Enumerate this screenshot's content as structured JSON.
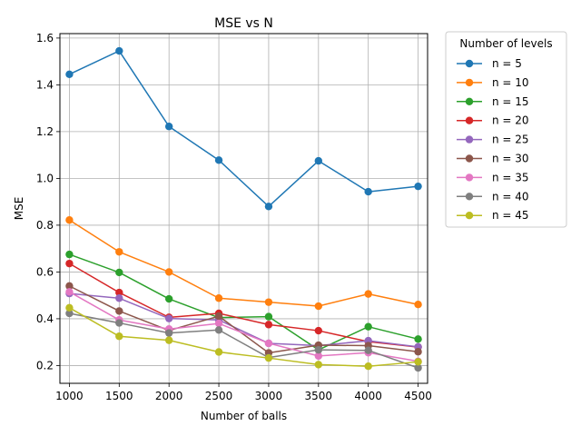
{
  "chart_data": {
    "type": "line",
    "title": "MSE vs N",
    "xlabel": "Number of balls",
    "ylabel": "MSE",
    "x": [
      1000,
      1500,
      2000,
      2500,
      3000,
      3500,
      4000,
      4500
    ],
    "xticks": [
      1000,
      1500,
      2000,
      2500,
      3000,
      3500,
      4000,
      4500
    ],
    "yticks": [
      0.2,
      0.4,
      0.6,
      0.8,
      1.0,
      1.2,
      1.4,
      1.6
    ],
    "xlim": [
      905,
      4595
    ],
    "ylim": [
      0.124,
      1.619
    ],
    "grid": true,
    "legend_title": "Number of levels",
    "legend_position": "outside-right",
    "series": [
      {
        "name": "n = 5",
        "color": "#1f77b4",
        "values": [
          1.445,
          1.545,
          1.222,
          1.078,
          0.88,
          1.075,
          0.943,
          0.966
        ]
      },
      {
        "name": "n = 10",
        "color": "#ff7f0e",
        "values": [
          0.822,
          0.686,
          0.6,
          0.488,
          0.471,
          0.454,
          0.506,
          0.461
        ]
      },
      {
        "name": "n = 15",
        "color": "#2ca02c",
        "values": [
          0.675,
          0.598,
          0.485,
          0.405,
          0.409,
          0.267,
          0.366,
          0.313
        ]
      },
      {
        "name": "n = 20",
        "color": "#d62728",
        "values": [
          0.636,
          0.512,
          0.406,
          0.423,
          0.375,
          0.349,
          0.302,
          0.279
        ]
      },
      {
        "name": "n = 25",
        "color": "#9467bd",
        "values": [
          0.508,
          0.488,
          0.401,
          0.395,
          0.295,
          0.285,
          0.306,
          0.28
        ]
      },
      {
        "name": "n = 30",
        "color": "#8c564b",
        "values": [
          0.54,
          0.433,
          0.35,
          0.411,
          0.254,
          0.287,
          0.285,
          0.259
        ]
      },
      {
        "name": "n = 35",
        "color": "#e377c2",
        "values": [
          0.515,
          0.395,
          0.356,
          0.38,
          0.295,
          0.241,
          0.255,
          0.218
        ]
      },
      {
        "name": "n = 40",
        "color": "#7f7f7f",
        "values": [
          0.423,
          0.382,
          0.339,
          0.352,
          0.234,
          0.267,
          0.265,
          0.19
        ]
      },
      {
        "name": "n = 45",
        "color": "#bcbd22",
        "values": [
          0.447,
          0.325,
          0.308,
          0.258,
          0.232,
          0.204,
          0.197,
          0.216
        ]
      }
    ]
  }
}
